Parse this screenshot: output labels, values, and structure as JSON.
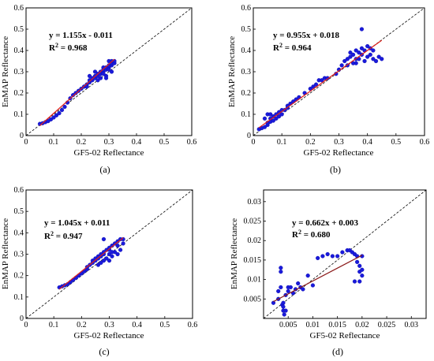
{
  "chart_data": [
    {
      "panel_label": "(a)",
      "type": "scatter",
      "xlabel": "GF5-02 Reflectance",
      "ylabel": "EnMAP Reflectance",
      "xlim": [
        0,
        0.6
      ],
      "ylim": [
        0,
        0.6
      ],
      "xticks": [
        "0",
        "0.1",
        "0.2",
        "0.3",
        "0.4",
        "0.5",
        "0.6"
      ],
      "yticks": [
        "0",
        "0.1",
        "0.2",
        "0.3",
        "0.4",
        "0.5",
        "0.6"
      ],
      "equation": "y = 1.155x - 0.011",
      "r2_label": "R",
      "r2_sup": "2",
      "r2_value": " = 0.968",
      "fit": {
        "slope": 1.155,
        "intercept": -0.011,
        "x_range": [
          0.05,
          0.32
        ]
      },
      "points": [
        [
          0.05,
          0.055
        ],
        [
          0.06,
          0.058
        ],
        [
          0.07,
          0.063
        ],
        [
          0.08,
          0.068
        ],
        [
          0.09,
          0.076
        ],
        [
          0.1,
          0.085
        ],
        [
          0.11,
          0.095
        ],
        [
          0.12,
          0.105
        ],
        [
          0.13,
          0.12
        ],
        [
          0.14,
          0.135
        ],
        [
          0.15,
          0.155
        ],
        [
          0.16,
          0.175
        ],
        [
          0.17,
          0.19
        ],
        [
          0.18,
          0.2
        ],
        [
          0.19,
          0.21
        ],
        [
          0.2,
          0.22
        ],
        [
          0.21,
          0.23
        ],
        [
          0.22,
          0.24
        ],
        [
          0.22,
          0.23
        ],
        [
          0.23,
          0.25
        ],
        [
          0.23,
          0.26
        ],
        [
          0.24,
          0.26
        ],
        [
          0.24,
          0.27
        ],
        [
          0.25,
          0.27
        ],
        [
          0.25,
          0.28
        ],
        [
          0.26,
          0.28
        ],
        [
          0.26,
          0.29
        ],
        [
          0.27,
          0.29
        ],
        [
          0.27,
          0.3
        ],
        [
          0.28,
          0.3
        ],
        [
          0.28,
          0.31
        ],
        [
          0.29,
          0.31
        ],
        [
          0.29,
          0.32
        ],
        [
          0.3,
          0.32
        ],
        [
          0.3,
          0.33
        ],
        [
          0.31,
          0.33
        ],
        [
          0.31,
          0.34
        ],
        [
          0.32,
          0.34
        ],
        [
          0.32,
          0.35
        ],
        [
          0.26,
          0.26
        ],
        [
          0.27,
          0.27
        ],
        [
          0.29,
          0.28
        ],
        [
          0.3,
          0.31
        ],
        [
          0.28,
          0.29
        ],
        [
          0.31,
          0.35
        ],
        [
          0.28,
          0.32
        ],
        [
          0.23,
          0.28
        ],
        [
          0.25,
          0.3
        ],
        [
          0.3,
          0.35
        ],
        [
          0.29,
          0.27
        ],
        [
          0.31,
          0.3
        ]
      ]
    },
    {
      "panel_label": "(b)",
      "type": "scatter",
      "xlabel": "GF5-02 Reflectance",
      "ylabel": "EnMAP Reflectance",
      "xlim": [
        0,
        0.6
      ],
      "ylim": [
        0,
        0.6
      ],
      "xticks": [
        "0",
        "0.1",
        "0.2",
        "0.3",
        "0.4",
        "0.5",
        "0.6"
      ],
      "yticks": [
        "0",
        "0.1",
        "0.2",
        "0.3",
        "0.4",
        "0.5",
        "0.6"
      ],
      "equation": "y = 0.955x + 0.018",
      "r2_label": "R",
      "r2_sup": "2",
      "r2_value": " = 0.964",
      "fit": {
        "slope": 0.955,
        "intercept": 0.018,
        "x_range": [
          0.02,
          0.45
        ]
      },
      "points": [
        [
          0.02,
          0.03
        ],
        [
          0.03,
          0.035
        ],
        [
          0.04,
          0.04
        ],
        [
          0.05,
          0.05
        ],
        [
          0.05,
          0.06
        ],
        [
          0.06,
          0.065
        ],
        [
          0.06,
          0.08
        ],
        [
          0.07,
          0.07
        ],
        [
          0.07,
          0.09
        ],
        [
          0.08,
          0.08
        ],
        [
          0.08,
          0.1
        ],
        [
          0.09,
          0.09
        ],
        [
          0.09,
          0.11
        ],
        [
          0.1,
          0.1
        ],
        [
          0.1,
          0.12
        ],
        [
          0.11,
          0.12
        ],
        [
          0.12,
          0.13
        ],
        [
          0.12,
          0.14
        ],
        [
          0.13,
          0.15
        ],
        [
          0.14,
          0.16
        ],
        [
          0.15,
          0.17
        ],
        [
          0.16,
          0.18
        ],
        [
          0.18,
          0.2
        ],
        [
          0.2,
          0.22
        ],
        [
          0.21,
          0.23
        ],
        [
          0.22,
          0.24
        ],
        [
          0.23,
          0.26
        ],
        [
          0.24,
          0.26
        ],
        [
          0.25,
          0.27
        ],
        [
          0.26,
          0.27
        ],
        [
          0.29,
          0.29
        ],
        [
          0.31,
          0.33
        ],
        [
          0.32,
          0.35
        ],
        [
          0.33,
          0.36
        ],
        [
          0.34,
          0.37
        ],
        [
          0.35,
          0.38
        ],
        [
          0.36,
          0.36
        ],
        [
          0.36,
          0.4
        ],
        [
          0.37,
          0.39
        ],
        [
          0.38,
          0.38
        ],
        [
          0.38,
          0.41
        ],
        [
          0.39,
          0.4
        ],
        [
          0.4,
          0.42
        ],
        [
          0.4,
          0.37
        ],
        [
          0.41,
          0.38
        ],
        [
          0.41,
          0.41
        ],
        [
          0.42,
          0.36
        ],
        [
          0.42,
          0.4
        ],
        [
          0.43,
          0.35
        ],
        [
          0.44,
          0.37
        ],
        [
          0.45,
          0.36
        ],
        [
          0.38,
          0.5
        ],
        [
          0.36,
          0.34
        ],
        [
          0.34,
          0.39
        ],
        [
          0.35,
          0.34
        ],
        [
          0.37,
          0.36
        ],
        [
          0.39,
          0.35
        ],
        [
          0.3,
          0.31
        ],
        [
          0.33,
          0.33
        ],
        [
          0.05,
          0.1
        ],
        [
          0.04,
          0.08
        ],
        [
          0.06,
          0.1
        ]
      ]
    },
    {
      "panel_label": "(c)",
      "type": "scatter",
      "xlabel": "GF5-02 Reflectance",
      "ylabel": "EnMAP Reflectance",
      "xlim": [
        0,
        0.6
      ],
      "ylim": [
        0,
        0.6
      ],
      "xticks": [
        "0",
        "0.1",
        "0.2",
        "0.3",
        "0.4",
        "0.5",
        "0.6"
      ],
      "yticks": [
        "0",
        "0.1",
        "0.2",
        "0.3",
        "0.4",
        "0.5",
        "0.6"
      ],
      "equation": "y = 1.045x + 0.011",
      "r2_label": "R",
      "r2_sup": "2",
      "r2_value": " = 0.947",
      "fit": {
        "slope": 1.045,
        "intercept": 0.011,
        "x_range": [
          0.12,
          0.35
        ]
      },
      "points": [
        [
          0.12,
          0.145
        ],
        [
          0.13,
          0.15
        ],
        [
          0.14,
          0.155
        ],
        [
          0.15,
          0.16
        ],
        [
          0.16,
          0.17
        ],
        [
          0.17,
          0.18
        ],
        [
          0.18,
          0.19
        ],
        [
          0.19,
          0.2
        ],
        [
          0.2,
          0.21
        ],
        [
          0.21,
          0.22
        ],
        [
          0.22,
          0.23
        ],
        [
          0.23,
          0.25
        ],
        [
          0.24,
          0.26
        ],
        [
          0.25,
          0.27
        ],
        [
          0.25,
          0.28
        ],
        [
          0.26,
          0.28
        ],
        [
          0.26,
          0.29
        ],
        [
          0.27,
          0.29
        ],
        [
          0.27,
          0.3
        ],
        [
          0.28,
          0.3
        ],
        [
          0.28,
          0.31
        ],
        [
          0.29,
          0.32
        ],
        [
          0.3,
          0.32
        ],
        [
          0.3,
          0.33
        ],
        [
          0.31,
          0.34
        ],
        [
          0.32,
          0.35
        ],
        [
          0.33,
          0.36
        ],
        [
          0.34,
          0.37
        ],
        [
          0.35,
          0.37
        ],
        [
          0.28,
          0.37
        ],
        [
          0.27,
          0.26
        ],
        [
          0.29,
          0.28
        ],
        [
          0.3,
          0.3
        ],
        [
          0.31,
          0.29
        ],
        [
          0.32,
          0.31
        ],
        [
          0.33,
          0.3
        ],
        [
          0.34,
          0.32
        ],
        [
          0.22,
          0.24
        ],
        [
          0.24,
          0.27
        ],
        [
          0.26,
          0.25
        ],
        [
          0.28,
          0.27
        ],
        [
          0.3,
          0.27
        ],
        [
          0.31,
          0.31
        ],
        [
          0.33,
          0.34
        ],
        [
          0.35,
          0.35
        ]
      ]
    },
    {
      "panel_label": "(d)",
      "type": "scatter",
      "xlabel": "GF5-02 Reflectance",
      "ylabel": "EnMAP Reflectance",
      "xlim": [
        0,
        0.033
      ],
      "ylim": [
        0,
        0.033
      ],
      "xticks": [
        "0.005",
        "0.01",
        "0.015",
        "0.02",
        "0.025",
        "0.03"
      ],
      "xtick_values": [
        0.005,
        0.01,
        0.015,
        0.02,
        0.025,
        0.03
      ],
      "yticks": [
        "0.005",
        "0.01",
        "0.015",
        "0.02",
        "0.025",
        "0.03"
      ],
      "ytick_values": [
        0.005,
        0.01,
        0.015,
        0.02,
        0.025,
        0.03
      ],
      "equation": "y = 0.662x + 0.003",
      "r2_label": "R",
      "r2_sup": "2",
      "r2_value": " = 0.680",
      "fit": {
        "slope": 0.662,
        "intercept": 0.003,
        "x_range": [
          0.002,
          0.02
        ]
      },
      "points": [
        [
          0.002,
          0.004
        ],
        [
          0.003,
          0.005
        ],
        [
          0.003,
          0.007
        ],
        [
          0.0035,
          0.013
        ],
        [
          0.0035,
          0.012
        ],
        [
          0.0035,
          0.008
        ],
        [
          0.0038,
          0.0035
        ],
        [
          0.004,
          0.003
        ],
        [
          0.004,
          0.002
        ],
        [
          0.0042,
          0.001
        ],
        [
          0.0045,
          0.002
        ],
        [
          0.004,
          0.004
        ],
        [
          0.0045,
          0.006
        ],
        [
          0.005,
          0.007
        ],
        [
          0.005,
          0.008
        ],
        [
          0.0055,
          0.008
        ],
        [
          0.006,
          0.0065
        ],
        [
          0.0065,
          0.0075
        ],
        [
          0.007,
          0.009
        ],
        [
          0.0075,
          0.008
        ],
        [
          0.008,
          0.0075
        ],
        [
          0.009,
          0.011
        ],
        [
          0.01,
          0.0085
        ],
        [
          0.011,
          0.0155
        ],
        [
          0.012,
          0.016
        ],
        [
          0.013,
          0.0165
        ],
        [
          0.014,
          0.016
        ],
        [
          0.015,
          0.016
        ],
        [
          0.016,
          0.017
        ],
        [
          0.017,
          0.0175
        ],
        [
          0.0175,
          0.0175
        ],
        [
          0.018,
          0.017
        ],
        [
          0.0185,
          0.0165
        ],
        [
          0.019,
          0.016
        ],
        [
          0.019,
          0.0145
        ],
        [
          0.0195,
          0.0135
        ],
        [
          0.0195,
          0.012
        ],
        [
          0.02,
          0.011
        ],
        [
          0.02,
          0.0125
        ],
        [
          0.0195,
          0.0095
        ],
        [
          0.0185,
          0.0095
        ],
        [
          0.02,
          0.016
        ]
      ]
    }
  ]
}
